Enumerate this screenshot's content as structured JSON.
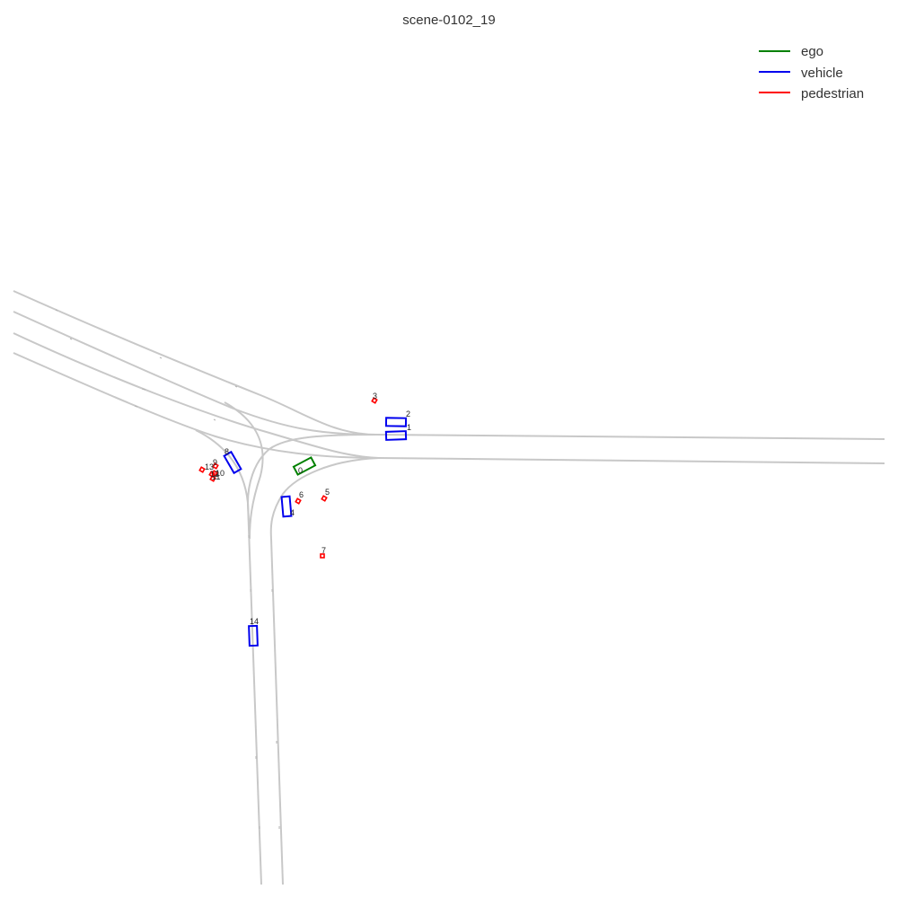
{
  "title": "scene-0102_19",
  "legend": [
    {
      "label": "ego",
      "color": "#008000"
    },
    {
      "label": "vehicle",
      "color": "#0000ee"
    },
    {
      "label": "pedestrian",
      "color": "#ff0000"
    }
  ],
  "colors": {
    "lane": "#c8c8c8",
    "ego": "#008000",
    "vehicle": "#0000ee",
    "pedestrian": "#ff0000"
  },
  "agents": [
    {
      "id": "0",
      "type": "ego"
    },
    {
      "id": "1",
      "type": "vehicle"
    },
    {
      "id": "2",
      "type": "vehicle"
    },
    {
      "id": "3",
      "type": "pedestrian"
    },
    {
      "id": "4",
      "type": "vehicle"
    },
    {
      "id": "5",
      "type": "pedestrian"
    },
    {
      "id": "6",
      "type": "pedestrian"
    },
    {
      "id": "7",
      "type": "pedestrian"
    },
    {
      "id": "8",
      "type": "vehicle"
    },
    {
      "id": "9",
      "type": "pedestrian"
    },
    {
      "id": "10",
      "type": "pedestrian"
    },
    {
      "id": "11",
      "type": "pedestrian"
    },
    {
      "id": "12",
      "type": "pedestrian"
    },
    {
      "id": "13",
      "type": "pedestrian"
    },
    {
      "id": "14",
      "type": "vehicle"
    }
  ]
}
